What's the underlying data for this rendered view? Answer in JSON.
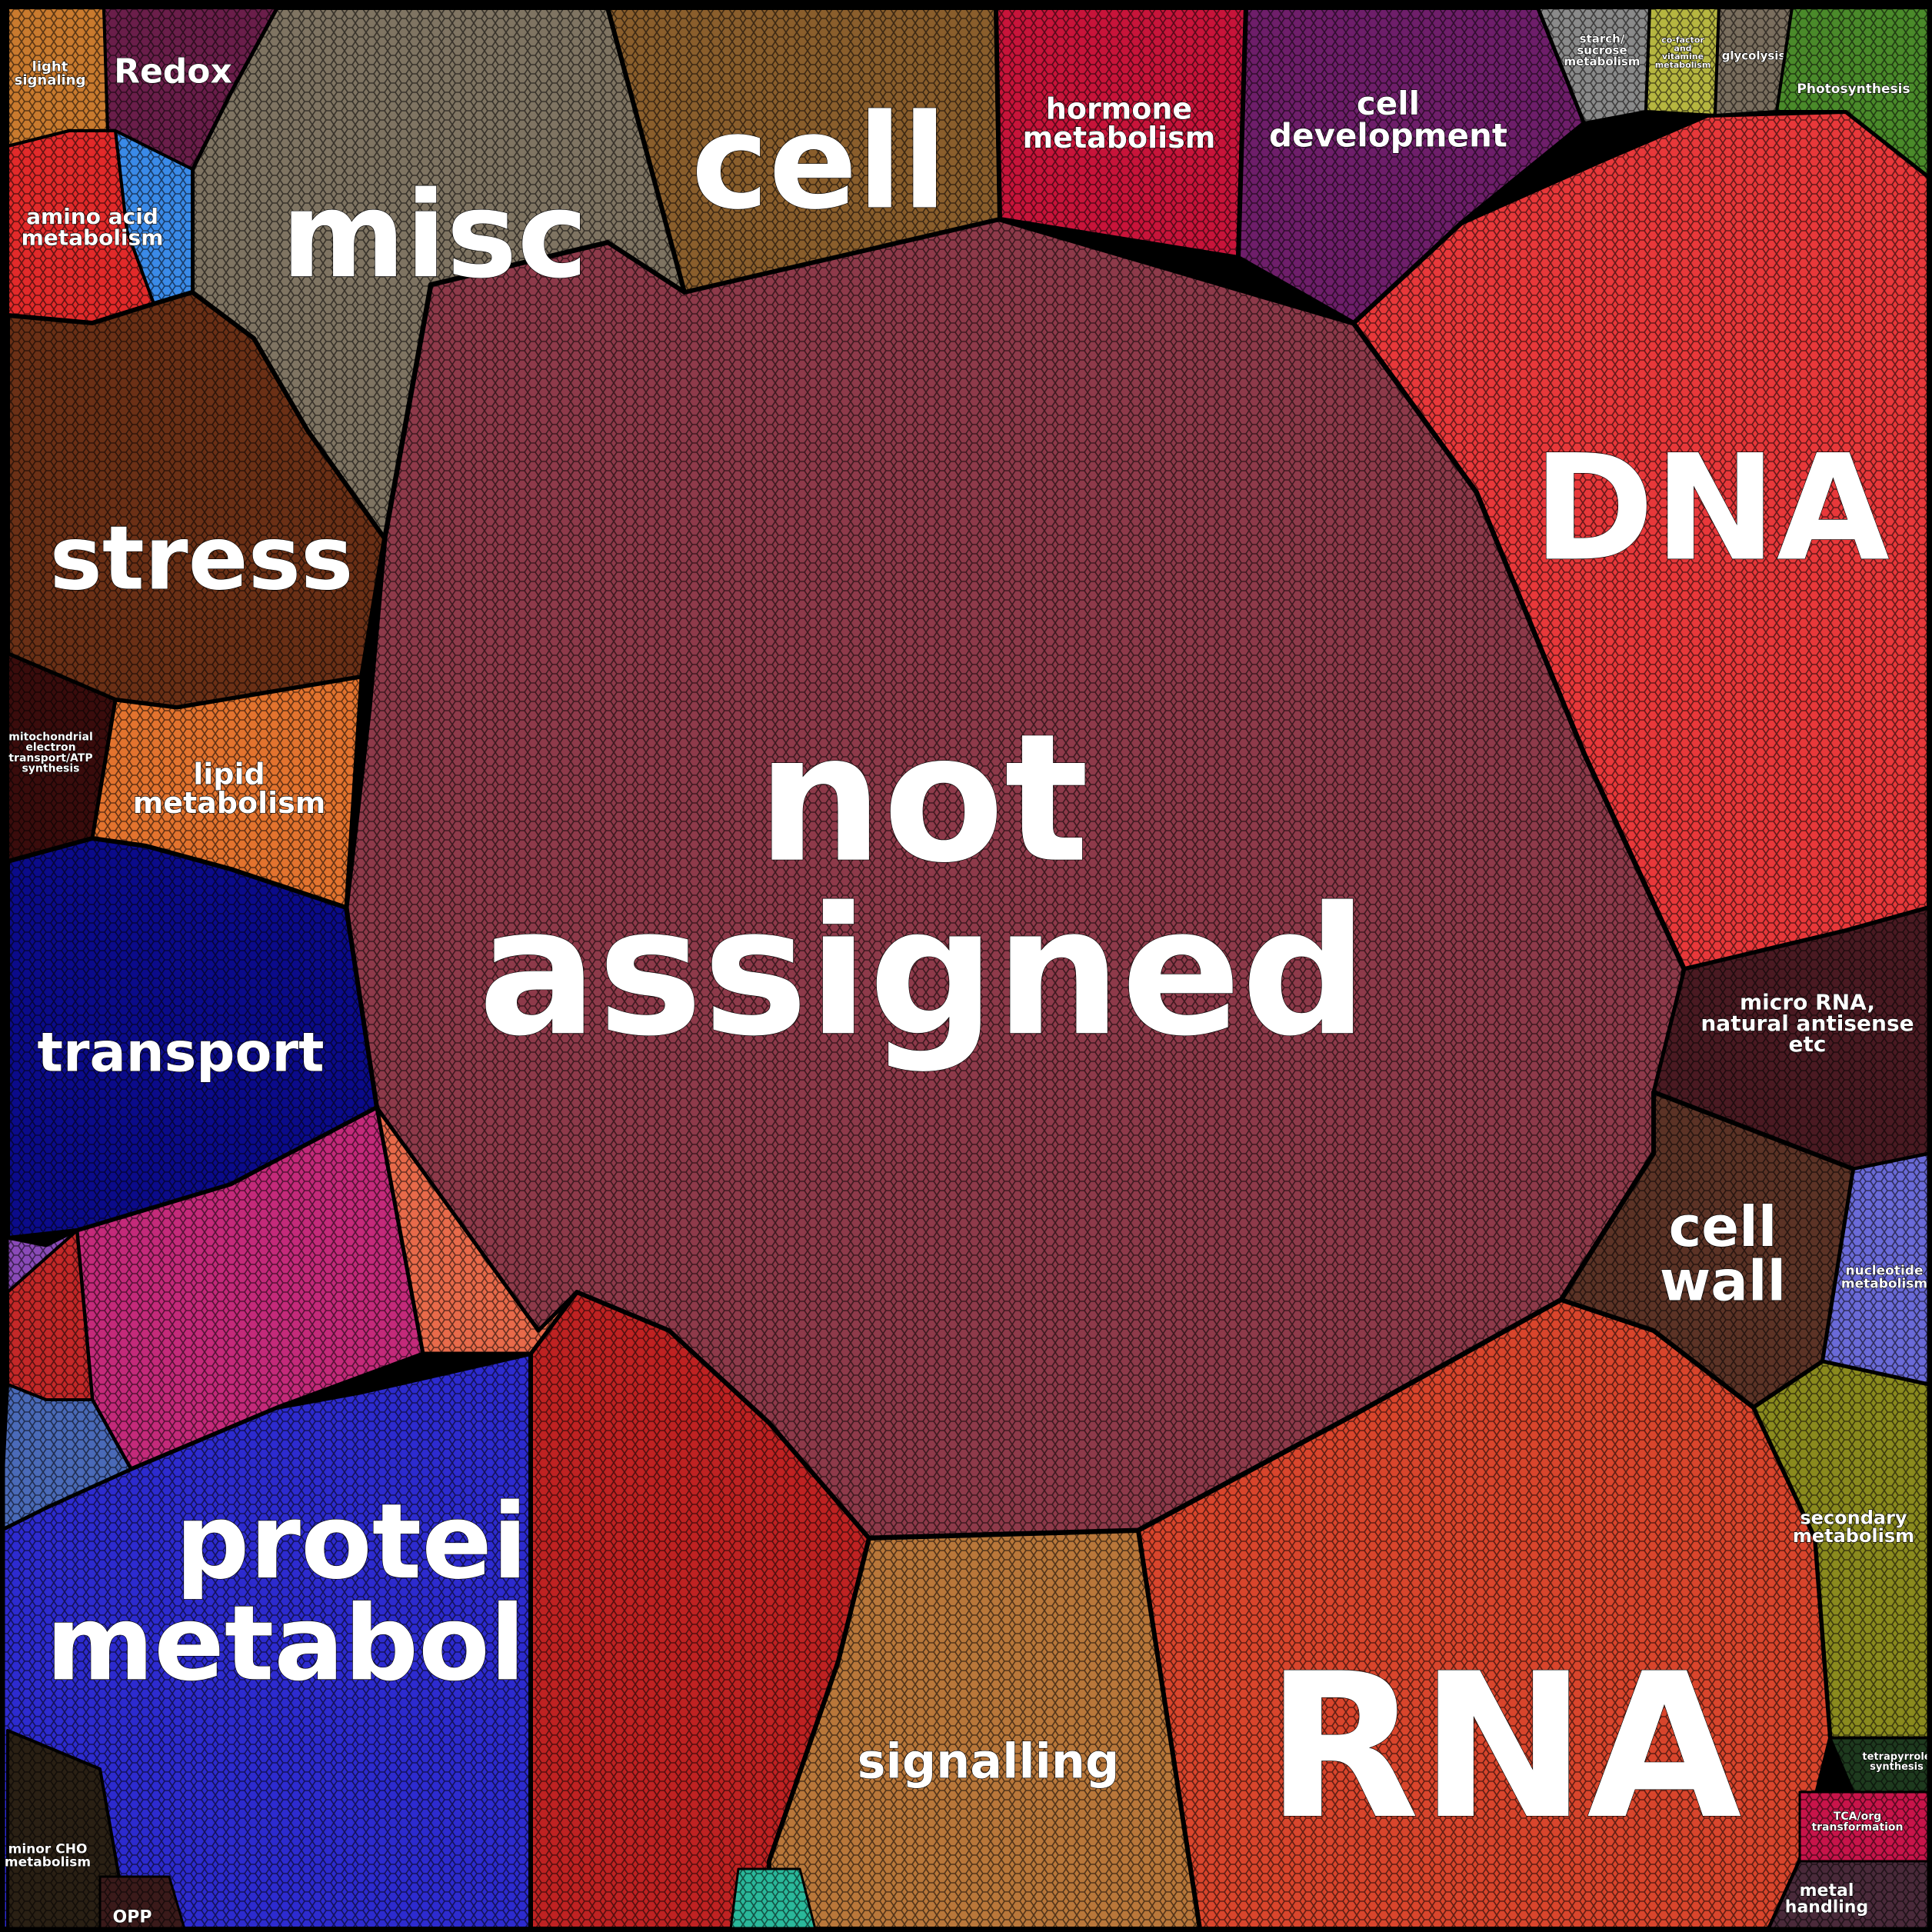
{
  "diagram": {
    "type": "voronoi-treemap",
    "border_color": "#000000",
    "cells": [
      {
        "id": "not-assigned",
        "lines": [
          "not",
          "assigned"
        ],
        "color": "#8e3a4a"
      },
      {
        "id": "dna",
        "lines": [
          "DNA"
        ],
        "color": "#e8383a"
      },
      {
        "id": "rna",
        "lines": [
          "RNA"
        ],
        "color": "#d9452c"
      },
      {
        "id": "protein-metabolism",
        "lines": [
          "protein",
          "metabolism"
        ],
        "color": "#2d2bcf"
      },
      {
        "id": "misc",
        "lines": [
          "misc"
        ],
        "color": "#7f7462"
      },
      {
        "id": "cell",
        "lines": [
          "cell"
        ],
        "color": "#8a5e2c"
      },
      {
        "id": "stress",
        "lines": [
          "stress"
        ],
        "color": "#6b3016"
      },
      {
        "id": "transport",
        "lines": [
          "transport"
        ],
        "color": "#0b0b8a"
      },
      {
        "id": "signalling",
        "lines": [
          "signalling"
        ],
        "color": "#b9773a"
      },
      {
        "id": "cell-wall",
        "lines": [
          "cell",
          "wall"
        ],
        "color": "#5c3326"
      },
      {
        "id": "hormone-metabolism",
        "lines": [
          "hormone",
          "metabolism"
        ],
        "color": "#c8143a"
      },
      {
        "id": "cell-development",
        "lines": [
          "cell",
          "development"
        ],
        "color": "#6e1e6a"
      },
      {
        "id": "lipid-metabolism",
        "lines": [
          "lipid",
          "metabolism"
        ],
        "color": "#e3732e"
      },
      {
        "id": "micro-rna",
        "lines": [
          "micro RNA,",
          "natural antisense",
          "etc"
        ],
        "color": "#4a1a22"
      },
      {
        "id": "redox",
        "lines": [
          "Redox"
        ],
        "color": "#6a1e4a"
      },
      {
        "id": "amino-acid-metabolism",
        "lines": [
          "amino acid",
          "metabolism"
        ],
        "color": "#e22a2a"
      },
      {
        "id": "light-signaling",
        "lines": [
          "light",
          "signaling"
        ],
        "color": "#c97a2e"
      },
      {
        "id": "photosynthesis",
        "lines": [
          "Photosynthesis"
        ],
        "color": "#4a8a2a"
      },
      {
        "id": "glycolysis",
        "lines": [
          "glycolysis"
        ],
        "color": "#7a6e5e"
      },
      {
        "id": "co-factor",
        "lines": [
          "co-factor",
          "and",
          "vitamine",
          "metabolism"
        ],
        "color": "#b6b640"
      },
      {
        "id": "starch-sucrose",
        "lines": [
          "starch/",
          "sucrose",
          "metabolism"
        ],
        "color": "#8a8a8a"
      },
      {
        "id": "mitochondrial",
        "lines": [
          "mitochondrial",
          "electron",
          "transport/ATP",
          "synthesis"
        ],
        "color": "#3a0c0c"
      },
      {
        "id": "nucleotide-metabolism",
        "lines": [
          "nucleotide",
          "metabolism"
        ],
        "color": "#6a6ad8"
      },
      {
        "id": "secondary-metabolism",
        "lines": [
          "secondary",
          "metabolism"
        ],
        "color": "#8a8a1e"
      },
      {
        "id": "tetrapyrrole",
        "lines": [
          "tetrapyrrole",
          "synthesis"
        ],
        "color": "#1e3a1e"
      },
      {
        "id": "tca",
        "lines": [
          "TCA/org",
          "transformation"
        ],
        "color": "#c8144a"
      },
      {
        "id": "metal-handling",
        "lines": [
          "metal",
          "handling"
        ],
        "color": "#4a2a3a"
      },
      {
        "id": "minor-cho",
        "lines": [
          "minor CHO",
          "metabolism"
        ],
        "color": "#2a2014"
      },
      {
        "id": "opp",
        "lines": [
          "OPP"
        ],
        "color": "#3a1a1a"
      },
      {
        "id": "unlabeled-pink",
        "lines": [],
        "color": "#c42a7a"
      },
      {
        "id": "unlabeled-coral",
        "lines": [],
        "color": "#e86a4a"
      },
      {
        "id": "unlabeled-crimson",
        "lines": [],
        "color": "#bf2222"
      },
      {
        "id": "unlabeled-red-left",
        "lines": [],
        "color": "#c42828"
      },
      {
        "id": "unlabeled-steel",
        "lines": [],
        "color": "#4a6ab8"
      },
      {
        "id": "unlabeled-blue-small",
        "lines": [],
        "color": "#3a8ae8"
      },
      {
        "id": "unlabeled-teal",
        "lines": [],
        "color": "#2ab89a"
      },
      {
        "id": "unlabeled-purple",
        "lines": [],
        "color": "#8a4ab8"
      }
    ]
  }
}
